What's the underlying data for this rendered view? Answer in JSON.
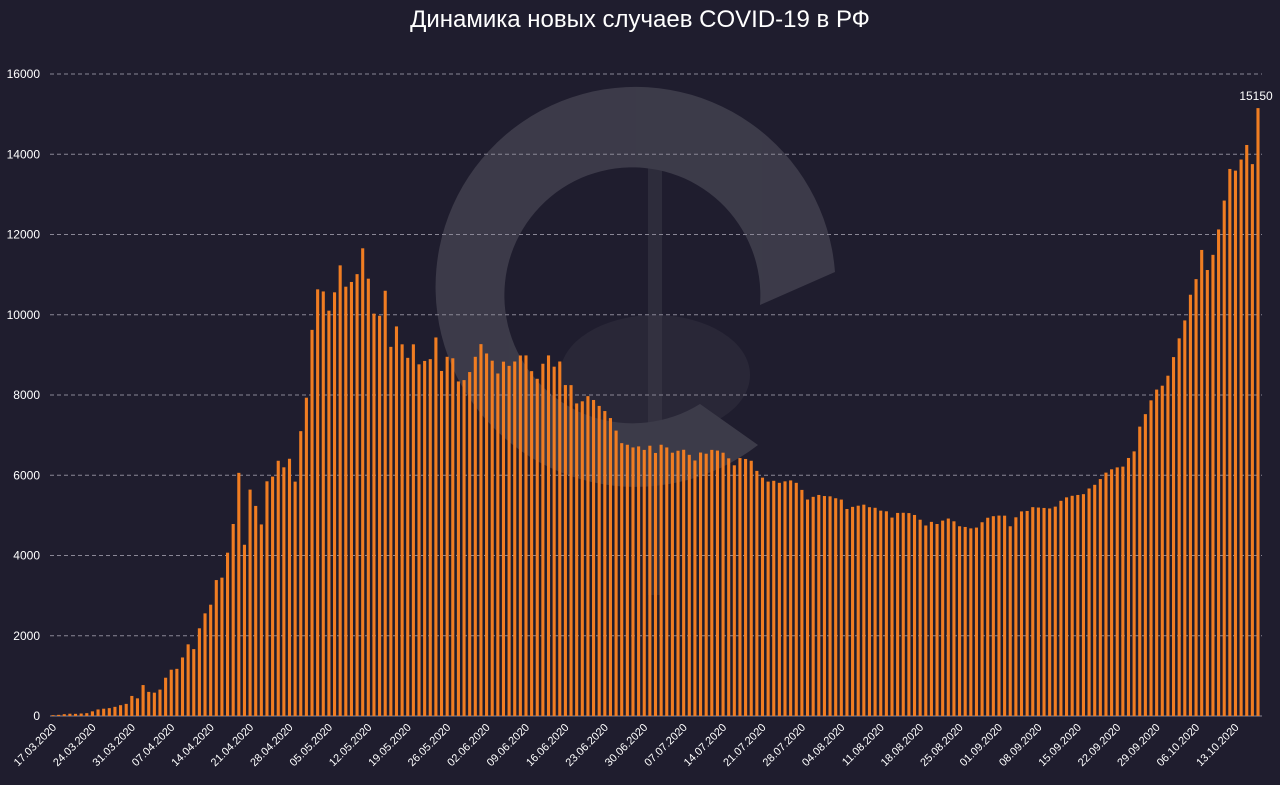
{
  "chart_data": {
    "type": "bar",
    "title": "Динамика новых случаев COVID-19 в РФ",
    "xlabel": "",
    "ylabel": "",
    "ylim": [
      0,
      16000
    ],
    "yticks": [
      0,
      2000,
      4000,
      6000,
      8000,
      10000,
      12000,
      14000,
      16000
    ],
    "grid": true,
    "bar_color": "#f07d22",
    "date_labels": [
      "17.03.2020",
      "24.03.2020",
      "31.03.2020",
      "07.04.2020",
      "14.04.2020",
      "21.04.2020",
      "28.04.2020",
      "05.05.2020",
      "12.05.2020",
      "19.05.2020",
      "26.05.2020",
      "02.06.2020",
      "09.06.2020",
      "16.06.2020",
      "23.06.2020",
      "30.06.2020",
      "07.07.2020",
      "14.07.2020",
      "21.07.2020",
      "28.07.2020",
      "04.08.2020",
      "11.08.2020",
      "18.08.2020",
      "25.08.2020",
      "01.09.2020",
      "08.09.2020",
      "15.09.2020",
      "22.09.2020",
      "29.09.2020",
      "06.10.2020",
      "13.10.2020"
    ],
    "annotation": {
      "label": "15150",
      "value": 15150
    },
    "values": [
      21,
      29,
      45,
      57,
      54,
      62,
      71,
      116,
      163,
      182,
      196,
      228,
      270,
      302,
      500,
      440,
      771,
      601,
      582,
      658,
      954,
      1154,
      1175,
      1459,
      1786,
      1667,
      2186,
      2558,
      2774,
      3388,
      3448,
      4070,
      4785,
      6060,
      4268,
      5642,
      5236,
      4774,
      5849,
      5966,
      6361,
      6198,
      6411,
      5841,
      7099,
      7933,
      9623,
      10633,
      10581,
      10102,
      10559,
      11231,
      10699,
      10817,
      11012,
      11656,
      10899,
      10028,
      9974,
      10598,
      9200,
      9709,
      9263,
      8926,
      9263,
      8764,
      8849,
      8894,
      9434,
      8599,
      8952,
      8915,
      8338,
      8371,
      8572,
      8952,
      9268,
      9035,
      8855,
      8536,
      8831,
      8726,
      8835,
      8985,
      8987,
      8595,
      8404,
      8779,
      8987,
      8706,
      8835,
      8248,
      8246,
      7790,
      7843,
      7972,
      7876,
      7728,
      7600,
      7425,
      7113,
      6800,
      6760,
      6693,
      6719,
      6632,
      6736,
      6556,
      6760,
      6693,
      6562,
      6611,
      6635,
      6509,
      6368,
      6566,
      6537,
      6632,
      6615,
      6562,
      6422,
      6248,
      6428,
      6406,
      6361,
      6109,
      5940,
      5842,
      5862,
      5811,
      5848,
      5871,
      5811,
      5635,
      5395,
      5462,
      5509,
      5482,
      5475,
      5427,
      5394,
      5159,
      5212,
      5241,
      5267,
      5204,
      5189,
      5118,
      5102,
      4945,
      5061,
      5065,
      5057,
      5010,
      4892,
      4748,
      4838,
      4785,
      4870,
      4921,
      4852,
      4729,
      4711,
      4676,
      4696,
      4829,
      4941,
      4980,
      4995,
      4993,
      4729,
      4952,
      5099,
      5110,
      5205,
      5195,
      5185,
      5172,
      5218,
      5363,
      5449,
      5488,
      5509,
      5529,
      5670,
      5762,
      5905,
      6065,
      6148,
      6196,
      6215,
      6431,
      6595,
      7212,
      7523,
      7867,
      8135,
      8232,
      8481,
      8945,
      9412,
      9859,
      10499,
      10888,
      11615,
      11115,
      11493,
      12126,
      12846,
      13634,
      13592,
      13868,
      14231,
      13754,
      15150
    ]
  }
}
